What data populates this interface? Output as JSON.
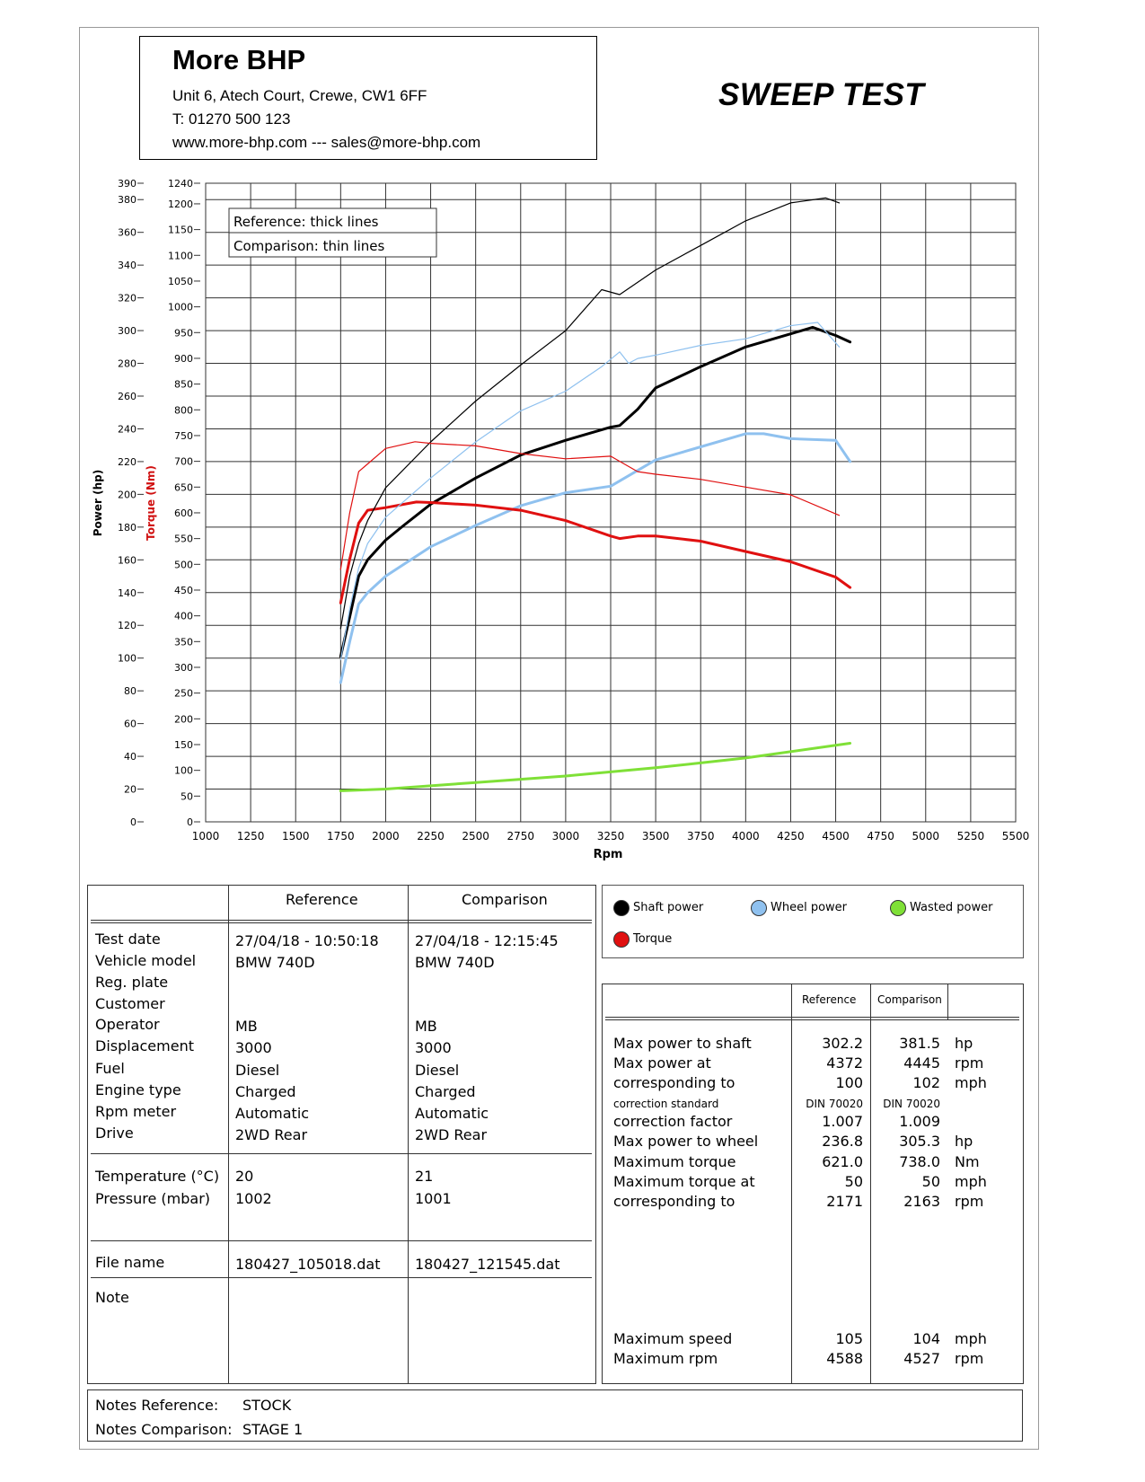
{
  "header": {
    "company_name": "More BHP",
    "address": "Unit 6, Atech Court, Crewe, CW1 6FF",
    "phone": "T: 01270 500 123",
    "web": "www.more-bhp.com --- sales@more-bhp.com",
    "title": "SWEEP TEST"
  },
  "chart_legend_box": {
    "reference": "Reference: thick lines",
    "comparison": "Comparison: thin lines"
  },
  "chart_data": {
    "type": "line",
    "title": "",
    "xlabel": "Rpm",
    "ylabel_left": "Power (hp)",
    "ylabel_right": "Torque (Nm)",
    "xlim": [
      1000,
      5500
    ],
    "power_lim": [
      0,
      390
    ],
    "torque_lim": [
      0,
      1240
    ],
    "x_ticks": [
      "1000",
      "1250",
      "1500",
      "1750",
      "2000",
      "2250",
      "2500",
      "2750",
      "3000",
      "3250",
      "3500",
      "3750",
      "4000",
      "4250",
      "4500",
      "4750",
      "5000",
      "5250",
      "5500"
    ],
    "power_ticks": [
      0,
      20,
      40,
      60,
      80,
      100,
      120,
      140,
      160,
      180,
      200,
      220,
      240,
      260,
      280,
      300,
      320,
      340,
      360,
      380,
      390
    ],
    "torque_ticks": [
      0,
      50,
      100,
      150,
      200,
      250,
      300,
      350,
      400,
      450,
      500,
      550,
      600,
      650,
      700,
      750,
      800,
      850,
      900,
      950,
      1000,
      1050,
      1100,
      1150,
      1200,
      1240
    ],
    "series": [
      {
        "name": "Shaft power",
        "axis": "power",
        "color": "#000000",
        "style": "thick",
        "x": [
          1750,
          1800,
          1850,
          1900,
          2000,
          2100,
          2250,
          2500,
          2750,
          3000,
          3250,
          3300,
          3400,
          3500,
          3750,
          4000,
          4250,
          4372,
          4500,
          4580
        ],
        "y": [
          101,
          125,
          150,
          160,
          172,
          181,
          194,
          210,
          224,
          233,
          241,
          242,
          252,
          265,
          278,
          290,
          298,
          302,
          297,
          293
        ]
      },
      {
        "name": "Wheel power",
        "axis": "power",
        "color": "#8fc1ef",
        "style": "thick",
        "x": [
          1750,
          1800,
          1850,
          1900,
          2000,
          2250,
          2500,
          2750,
          3000,
          3250,
          3500,
          3750,
          4000,
          4100,
          4250,
          4500,
          4580
        ],
        "y": [
          85,
          110,
          133,
          140,
          150,
          168,
          181,
          193,
          201,
          205,
          221,
          229,
          237,
          237,
          234,
          233,
          220
        ]
      },
      {
        "name": "Wasted power",
        "axis": "power",
        "color": "#7fe037",
        "style": "thick",
        "x": [
          1750,
          2000,
          2500,
          3000,
          3500,
          4000,
          4580
        ],
        "y": [
          19,
          20,
          24,
          28,
          33,
          39,
          48
        ]
      },
      {
        "name": "Torque",
        "axis": "torque",
        "color": "#e01010",
        "style": "thick",
        "x": [
          1750,
          1800,
          1850,
          1900,
          2000,
          2171,
          2250,
          2500,
          2750,
          3000,
          3250,
          3300,
          3400,
          3500,
          3750,
          4000,
          4250,
          4500,
          4580
        ],
        "y": [
          425,
          510,
          580,
          605,
          610,
          621,
          620,
          615,
          605,
          585,
          555,
          550,
          555,
          555,
          545,
          525,
          505,
          475,
          455
        ]
      },
      {
        "name": "Shaft power",
        "axis": "power",
        "color": "#000000",
        "style": "thin",
        "x": [
          1750,
          1800,
          1850,
          1900,
          2000,
          2250,
          2500,
          2750,
          3000,
          3200,
          3300,
          3500,
          3750,
          4000,
          4250,
          4445,
          4520
        ],
        "y": [
          118,
          150,
          170,
          184,
          204,
          232,
          257,
          279,
          300,
          325,
          322,
          337,
          352,
          367,
          378,
          381,
          378
        ]
      },
      {
        "name": "Wheel power",
        "axis": "power",
        "color": "#8fc1ef",
        "style": "thin",
        "x": [
          1750,
          1800,
          1850,
          1900,
          2000,
          2250,
          2500,
          2750,
          3000,
          3200,
          3300,
          3350,
          3400,
          3500,
          3750,
          4000,
          4250,
          4400,
          4520
        ],
        "y": [
          99,
          130,
          155,
          170,
          186,
          210,
          232,
          251,
          263,
          278,
          287,
          280,
          283,
          285,
          291,
          295,
          303,
          305,
          290
        ]
      },
      {
        "name": "Torque",
        "axis": "torque",
        "color": "#e01010",
        "style": "thin",
        "x": [
          1750,
          1800,
          1850,
          1900,
          2000,
          2163,
          2250,
          2500,
          2750,
          3000,
          3250,
          3300,
          3400,
          3500,
          3750,
          4000,
          4250,
          4520
        ],
        "y": [
          490,
          600,
          680,
          695,
          725,
          738,
          735,
          730,
          715,
          705,
          710,
          700,
          680,
          675,
          665,
          650,
          635,
          595
        ]
      }
    ]
  },
  "legend": {
    "shaft": "Shaft power",
    "wheel": "Wheel power",
    "wasted": "Wasted power",
    "torque": "Torque",
    "shaft_color": "#000000",
    "wheel_color": "#8fc1ef",
    "wasted_color": "#7fe037",
    "torque_color": "#e01010"
  },
  "info_table": {
    "col_reference": "Reference",
    "col_comparison": "Comparison",
    "rows1": [
      {
        "label": "Test date",
        "ref": "27/04/18 - 10:50:18",
        "cmp": "27/04/18 - 12:15:45"
      },
      {
        "label": "Vehicle model",
        "ref": "BMW 740D",
        "cmp": "BMW 740D"
      },
      {
        "label": "Reg. plate",
        "ref": "",
        "cmp": ""
      },
      {
        "label": "Customer",
        "ref": "",
        "cmp": ""
      },
      {
        "label": "Operator",
        "ref": "MB",
        "cmp": "MB"
      },
      {
        "label": "Displacement",
        "ref": "3000",
        "cmp": "3000"
      },
      {
        "label": "Fuel",
        "ref": "Diesel",
        "cmp": "Diesel"
      },
      {
        "label": "Engine type",
        "ref": "Charged",
        "cmp": "Charged"
      },
      {
        "label": "Rpm meter",
        "ref": "Automatic",
        "cmp": "Automatic"
      },
      {
        "label": "Drive",
        "ref": "2WD Rear",
        "cmp": "2WD Rear"
      }
    ],
    "rows2": [
      {
        "label": "Temperature (°C)",
        "ref": "20",
        "cmp": "21"
      },
      {
        "label": "Pressure (mbar)",
        "ref": "1002",
        "cmp": "1001"
      }
    ],
    "file_label": "File name",
    "file_ref": "180427_105018.dat",
    "file_cmp": "180427_121545.dat",
    "note_label": "Note"
  },
  "results_table": {
    "col_reference": "Reference",
    "col_comparison": "Comparison",
    "rows": [
      {
        "label": "Max power to shaft",
        "ref": "302.2",
        "cmp": "381.5",
        "unit": "hp"
      },
      {
        "label": "Max power at",
        "ref": "4372",
        "cmp": "4445",
        "unit": "rpm"
      },
      {
        "label": "corresponding to",
        "ref": "100",
        "cmp": "102",
        "unit": "mph"
      },
      {
        "label": "correction standard",
        "ref": "DIN 70020",
        "cmp": "DIN 70020",
        "unit": "",
        "small": true
      },
      {
        "label": "correction factor",
        "ref": "1.007",
        "cmp": "1.009",
        "unit": ""
      },
      {
        "label": "Max power to wheel",
        "ref": "236.8",
        "cmp": "305.3",
        "unit": "hp"
      },
      {
        "label": "Maximum torque",
        "ref": "621.0",
        "cmp": "738.0",
        "unit": "Nm"
      },
      {
        "label": "Maximum torque at",
        "ref": "50",
        "cmp": "50",
        "unit": "mph"
      },
      {
        "label": "corresponding to",
        "ref": "2171",
        "cmp": "2163",
        "unit": "rpm"
      }
    ],
    "rows_bottom": [
      {
        "label": "Maximum speed",
        "ref": "105",
        "cmp": "104",
        "unit": "mph"
      },
      {
        "label": "Maximum rpm",
        "ref": "4588",
        "cmp": "4527",
        "unit": "rpm"
      }
    ]
  },
  "notes": {
    "ref_label": "Notes Reference:",
    "ref_value": "STOCK",
    "cmp_label": "Notes Comparison:",
    "cmp_value": "STAGE 1"
  }
}
